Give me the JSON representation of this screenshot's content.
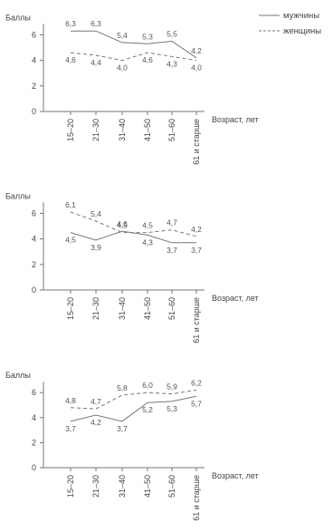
{
  "legend": [
    {
      "label": "мужчины",
      "style": "solid"
    },
    {
      "label": "женщины",
      "style": "dashed"
    }
  ],
  "colors": {
    "line": "#777777",
    "text": "#444444"
  },
  "chart_data": [
    {
      "type": "line",
      "ylabel": "Баллы",
      "xlabel": "Возраст, лет",
      "ylim": [
        0,
        6
      ],
      "yticks": [
        0,
        2,
        4,
        6
      ],
      "categories": [
        "15–20",
        "21–30",
        "31–40",
        "41–50",
        "51–60",
        "61 и старше"
      ],
      "series": [
        {
          "name": "мужчины",
          "style": "solid",
          "values": [
            6.3,
            6.3,
            5.4,
            5.3,
            5.5,
            4.2
          ],
          "labels": [
            "6,3",
            "6,3",
            "5,4",
            "5,3",
            "5,5",
            "4,2"
          ]
        },
        {
          "name": "женщины",
          "style": "dashed",
          "values": [
            4.6,
            4.4,
            4.0,
            4.6,
            4.3,
            4.0
          ],
          "labels": [
            "4,6",
            "4,4",
            "4,0",
            "4,6",
            "4,3",
            "4,0"
          ]
        }
      ]
    },
    {
      "type": "line",
      "ylabel": "Баллы",
      "xlabel": "Возраст, лет",
      "ylim": [
        0,
        6
      ],
      "yticks": [
        0,
        2,
        4,
        6
      ],
      "categories": [
        "15–20",
        "21–30",
        "31–40",
        "41–50",
        "51–60",
        "61 и старше"
      ],
      "series": [
        {
          "name": "мужчины",
          "style": "solid",
          "values": [
            4.5,
            3.9,
            4.6,
            4.3,
            3.7,
            3.7
          ],
          "labels": [
            "4,5",
            "3,9",
            "4,6",
            "4,3",
            "3,7",
            "3,7"
          ]
        },
        {
          "name": "женщины",
          "style": "dashed",
          "values": [
            6.1,
            5.4,
            4.5,
            4.5,
            4.7,
            4.2
          ],
          "labels": [
            "6,1",
            "5,4",
            "4,5",
            "4,5",
            "4,7",
            "4,2"
          ]
        }
      ]
    },
    {
      "type": "line",
      "ylabel": "Баллы",
      "xlabel": "Возраст, лет",
      "ylim": [
        0,
        6
      ],
      "yticks": [
        0,
        2,
        4,
        6
      ],
      "categories": [
        "15–20",
        "21–30",
        "31–40",
        "41–50",
        "51–60",
        "61 и старше"
      ],
      "series": [
        {
          "name": "мужчины",
          "style": "solid",
          "values": [
            3.7,
            4.2,
            3.7,
            5.2,
            5.3,
            5.7
          ],
          "labels": [
            "3,7",
            "4,2",
            "3,7",
            "5,2",
            "5,3",
            "5,7"
          ]
        },
        {
          "name": "женщины",
          "style": "dashed",
          "values": [
            4.8,
            4.7,
            5.8,
            6.0,
            5.9,
            6.2
          ],
          "labels": [
            "4,8",
            "4,7",
            "5,8",
            "6,0",
            "5,9",
            "6,2"
          ]
        }
      ]
    }
  ]
}
